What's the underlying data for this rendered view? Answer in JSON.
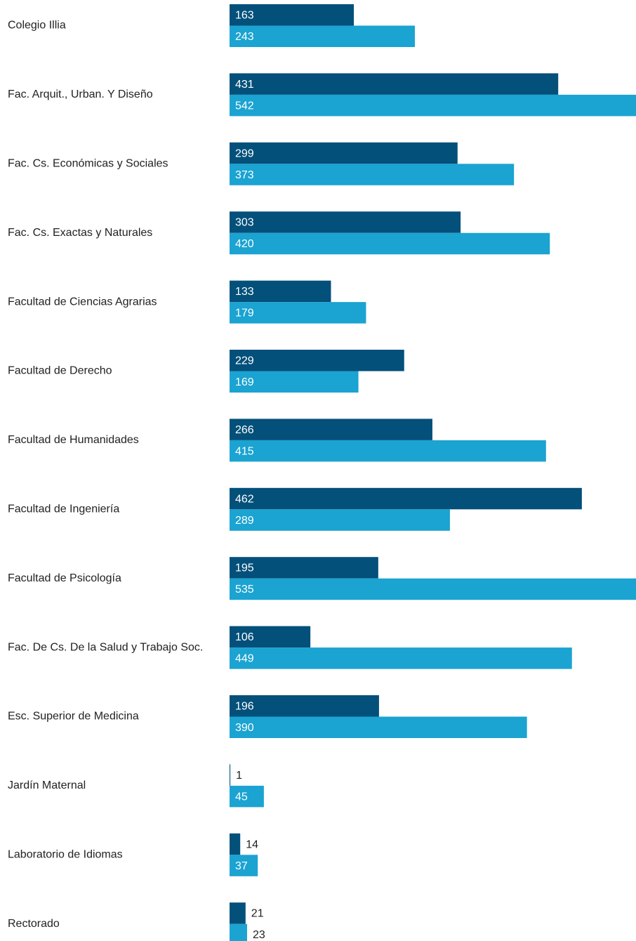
{
  "chart_data": {
    "type": "bar",
    "orientation": "horizontal",
    "categories": [
      "Colegio Illia",
      "Fac. Arquit., Urban. Y Diseño",
      "Fac. Cs. Económicas y Sociales",
      "Fac. Cs. Exactas y Naturales",
      "Facultad de Ciencias Agrarias",
      "Facultad de Derecho",
      "Facultad de Humanidades",
      "Facultad de Ingeniería",
      "Facultad de Psicología",
      "Fac. De Cs. De la Salud y Trabajo Soc.",
      "Esc. Superior de Medicina",
      "Jardín Maternal",
      "Laboratorio de Idiomas",
      "Rectorado"
    ],
    "series": [
      {
        "color": "#03507a",
        "values": [
          163,
          431,
          299,
          303,
          133,
          229,
          266,
          462,
          195,
          106,
          196,
          1,
          14,
          21
        ]
      },
      {
        "color": "#1ba3d1",
        "values": [
          243,
          542,
          373,
          420,
          179,
          169,
          415,
          289,
          535,
          449,
          390,
          45,
          37,
          23
        ]
      }
    ],
    "xlim": [
      0,
      533
    ]
  }
}
